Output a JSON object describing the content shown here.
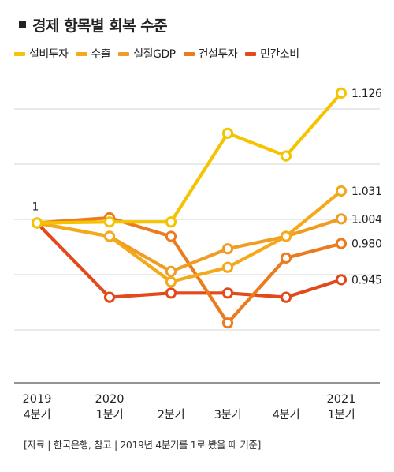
{
  "title": "경제 항목별 회복 수준",
  "source": "[자료 | 한국은행, 참고 | 2019년 4분기를 1로 봤을 때 기준]",
  "chart_data": {
    "type": "line",
    "categories": [
      {
        "top": "2019",
        "bottom": "4분기"
      },
      {
        "top": "2020",
        "bottom": "1분기"
      },
      {
        "top": "",
        "bottom": "2분기"
      },
      {
        "top": "",
        "bottom": "3분기"
      },
      {
        "top": "",
        "bottom": "4분기"
      },
      {
        "top": "2021",
        "bottom": "1분기"
      }
    ],
    "ylim": [
      0.845,
      1.155
    ],
    "grid": "horizontal",
    "series": [
      {
        "name": "설비투자",
        "color": "#F5C400",
        "values": [
          1.0,
          1.001,
          1.001,
          1.087,
          1.065,
          1.126
        ],
        "end_label": "1.126"
      },
      {
        "name": "수출",
        "color": "#F4A81A",
        "values": [
          1.0,
          0.987,
          0.943,
          0.957,
          0.987,
          1.031
        ],
        "end_label": "1.031"
      },
      {
        "name": "실질GDP",
        "color": "#F09C24",
        "values": [
          1.0,
          0.987,
          0.953,
          0.975,
          0.987,
          1.004
        ],
        "end_label": "1.004"
      },
      {
        "name": "건설투자",
        "color": "#EC7A1E",
        "values": [
          1.0,
          1.005,
          0.987,
          0.903,
          0.966,
          0.98
        ],
        "end_label": "0.980"
      },
      {
        "name": "민간소비",
        "color": "#E24A1C",
        "values": [
          1.0,
          0.928,
          0.932,
          0.932,
          0.928,
          0.945
        ],
        "end_label": "0.945"
      }
    ],
    "start_label": "1"
  }
}
